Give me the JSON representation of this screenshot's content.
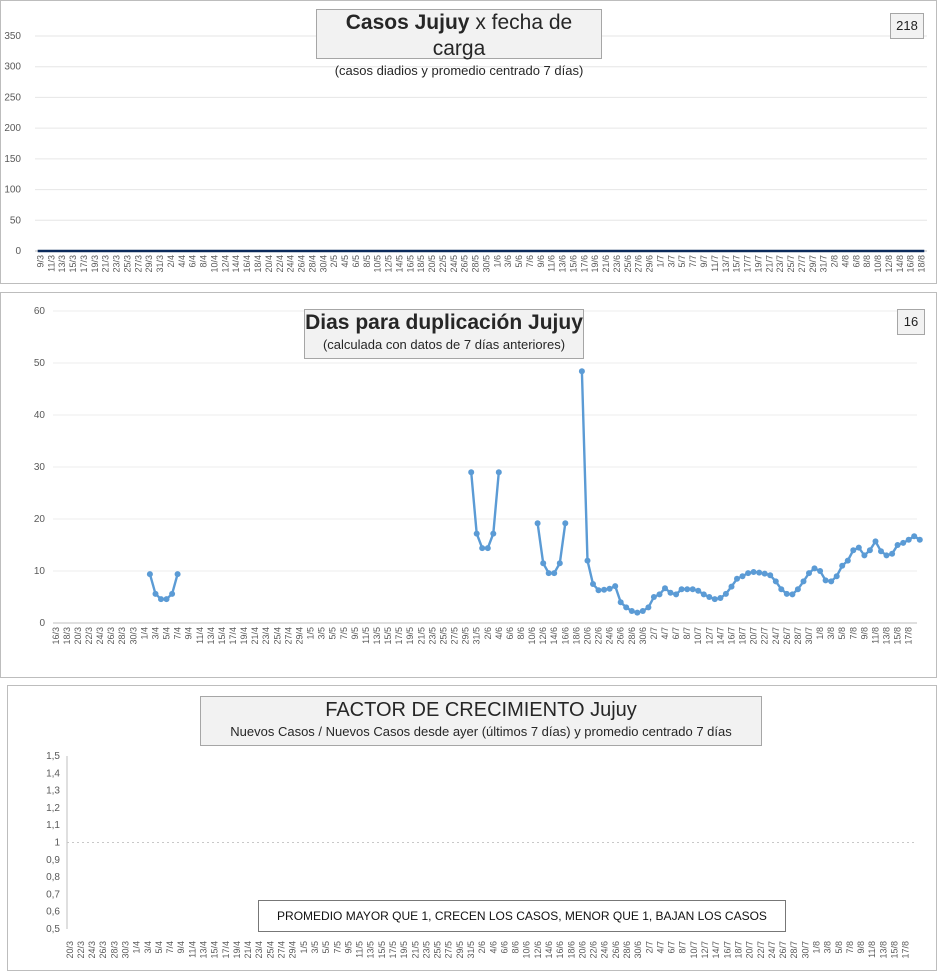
{
  "chart_data": [
    {
      "type": "bar",
      "title": "Casos Jujuy",
      "title_rest": "x fecha de carga",
      "subtitle": "(casos diadios y promedio  centrado 7 días)",
      "badge": "218",
      "ylim": [
        0,
        350
      ],
      "yticks": [
        0,
        50,
        100,
        150,
        200,
        250,
        300,
        350
      ],
      "xlabels": [
        "9/3",
        "11/3",
        "13/3",
        "15/3",
        "17/3",
        "19/3",
        "21/3",
        "23/3",
        "25/3",
        "27/3",
        "29/3",
        "31/3",
        "2/4",
        "4/4",
        "6/4",
        "8/4",
        "10/4",
        "12/4",
        "14/4",
        "16/4",
        "18/4",
        "20/4",
        "22/4",
        "24/4",
        "26/4",
        "28/4",
        "30/4",
        "2/5",
        "4/5",
        "6/5",
        "8/5",
        "10/5",
        "12/5",
        "14/5",
        "16/5",
        "18/5",
        "20/5",
        "22/5",
        "24/5",
        "26/5",
        "28/5",
        "30/5",
        "1/6",
        "3/6",
        "5/6",
        "7/6",
        "9/6",
        "11/6",
        "13/6",
        "15/6",
        "17/6",
        "19/6",
        "21/6",
        "23/6",
        "25/6",
        "27/6",
        "29/6",
        "1/7",
        "3/7",
        "5/7",
        "7/7",
        "9/7",
        "11/7",
        "13/7",
        "15/7",
        "17/7",
        "19/7",
        "21/7",
        "23/7",
        "25/7",
        "27/7",
        "29/7",
        "31/7",
        "2/8",
        "4/8",
        "6/8",
        "8/8",
        "10/8",
        "12/8",
        "14/8",
        "16/8",
        "18/8"
      ],
      "series": [
        {
          "name": "Casos diarios",
          "kind": "bar",
          "color": "#5b9bd5",
          "values": [
            0,
            0,
            0,
            0,
            0,
            0,
            0,
            0,
            0,
            0,
            0,
            0,
            0,
            0,
            0,
            0,
            0,
            0,
            0,
            0,
            0,
            0,
            0,
            0,
            0,
            0,
            0,
            0,
            0,
            0,
            0,
            0,
            0,
            0,
            0,
            0,
            0,
            0,
            0,
            0,
            0,
            0,
            0,
            0,
            0,
            0,
            0,
            0,
            0,
            0,
            0,
            0,
            0,
            0,
            0,
            0,
            0,
            0,
            0,
            0,
            0,
            0,
            0,
            0,
            0,
            0,
            0,
            0,
            0,
            0,
            0,
            0,
            0,
            0,
            0,
            0,
            0,
            0,
            0,
            0,
            0,
            0,
            0,
            0,
            0,
            0,
            0,
            0,
            0,
            0,
            0,
            0,
            0,
            0,
            0,
            0,
            0,
            0,
            0,
            0,
            0,
            0,
            0,
            0,
            0,
            0,
            0,
            0,
            0,
            0,
            0,
            0,
            0,
            0,
            0,
            0,
            0,
            0,
            0,
            0,
            0,
            0,
            0,
            0,
            0,
            0,
            0,
            0,
            0,
            0,
            0,
            0,
            0,
            0,
            0,
            0,
            0,
            0,
            0,
            0,
            0,
            0,
            0,
            0,
            0,
            0,
            0,
            0,
            0,
            0,
            0,
            0,
            0,
            0,
            0,
            0,
            0,
            0,
            0,
            0,
            0,
            0,
            0,
            0,
            0,
            0,
            0,
            0
          ]
        },
        {
          "name": "Promedio centrado 7 días",
          "kind": "line",
          "color": "#0b2a5b",
          "values": [
            0,
            0,
            0,
            0,
            0,
            0,
            0,
            0,
            0,
            0,
            0,
            0,
            0,
            0,
            0,
            0,
            0,
            0,
            0,
            0,
            0,
            0,
            0,
            0,
            0,
            0,
            0,
            0,
            0,
            0,
            0,
            0,
            0,
            0,
            0,
            0,
            0,
            0,
            0,
            0,
            0,
            0,
            0,
            0,
            0,
            0,
            0,
            0,
            0,
            0,
            0,
            0,
            0,
            0,
            0,
            0,
            0,
            0,
            0,
            0,
            0,
            0,
            0,
            0,
            0,
            0,
            0,
            0,
            0,
            0,
            0,
            0,
            0,
            0,
            0,
            0,
            0,
            0,
            0,
            0,
            0,
            0,
            0,
            0,
            0,
            0,
            0,
            0,
            0,
            0,
            0,
            0,
            0,
            0,
            0,
            0,
            0,
            0,
            0,
            0,
            0,
            0,
            0,
            0,
            0,
            0,
            0,
            0,
            0,
            0,
            0,
            0,
            0,
            0,
            0,
            0,
            0,
            0,
            0,
            0,
            0,
            0,
            0,
            0,
            0,
            0,
            0,
            0,
            0,
            0,
            0,
            0,
            0,
            0,
            0,
            0,
            0,
            0,
            0,
            0,
            0,
            0,
            0,
            0,
            0,
            0,
            0,
            0,
            0,
            0,
            0,
            0,
            0,
            0,
            0,
            0,
            0,
            0,
            0,
            0,
            0,
            0,
            0,
            0,
            0,
            0,
            0,
            0
          ]
        }
      ]
    },
    {
      "type": "line",
      "title": "Dias para duplicación Jujuy",
      "subtitle": "(calculada con datos de 7 días anteriores)",
      "badge": "16",
      "ylim": [
        0,
        60
      ],
      "yticks": [
        0,
        10,
        20,
        30,
        40,
        50,
        60
      ],
      "xlabels": [
        "16/3",
        "18/3",
        "20/3",
        "22/3",
        "24/3",
        "26/3",
        "28/3",
        "30/3",
        "1/4",
        "3/4",
        "5/4",
        "7/4",
        "9/4",
        "11/4",
        "13/4",
        "15/4",
        "17/4",
        "19/4",
        "21/4",
        "23/4",
        "25/4",
        "27/4",
        "29/4",
        "1/5",
        "3/5",
        "5/5",
        "7/5",
        "9/5",
        "11/5",
        "13/5",
        "15/5",
        "17/5",
        "19/5",
        "21/5",
        "23/5",
        "25/5",
        "27/5",
        "29/5",
        "31/5",
        "2/6",
        "4/6",
        "6/6",
        "8/6",
        "10/6",
        "12/6",
        "14/6",
        "16/6",
        "18/6",
        "20/6",
        "22/6",
        "24/6",
        "26/6",
        "28/6",
        "30/6",
        "2/7",
        "4/7",
        "6/7",
        "8/7",
        "10/7",
        "12/7",
        "14/7",
        "16/7",
        "18/7",
        "20/7",
        "22/7",
        "24/7",
        "26/7",
        "28/7",
        "30/7",
        "1/8",
        "3/8",
        "5/8",
        "7/8",
        "9/8",
        "11/8",
        "13/8",
        "15/8",
        "17/8"
      ],
      "series": [
        {
          "name": "Días para duplicación",
          "color": "#5b9bd5",
          "segments": [
            {
              "start": 17,
              "values": [
                9.4,
                5.6,
                4.6,
                4.6,
                5.6,
                9.4
              ]
            },
            {
              "start": 75,
              "values": [
                29,
                17.2,
                14.4,
                14.4,
                17.2,
                29
              ]
            },
            {
              "start": 87,
              "values": [
                19.2,
                11.5,
                9.6,
                9.6,
                11.5,
                19.2
              ]
            },
            {
              "start": 95,
              "values": [
                48.4,
                12,
                7.5,
                6.3,
                6.4,
                6.6,
                7.1,
                4,
                3,
                2.3,
                2,
                2.3,
                3,
                5,
                5.5,
                6.7,
                5.8,
                5.5,
                6.5,
                6.5,
                6.5,
                6.2,
                5.5,
                5,
                4.6,
                4.8,
                5.6,
                7,
                8.5,
                9,
                9.6,
                9.8,
                9.7,
                9.5,
                9.2,
                8,
                6.5,
                5.6,
                5.5,
                6.5,
                8,
                9.6,
                10.5,
                10,
                8.2,
                8,
                9,
                11,
                12,
                14,
                14.5,
                13,
                14,
                15.7,
                13.8,
                13,
                13.3,
                15,
                15.4,
                16,
                16.7,
                16
              ]
            }
          ]
        }
      ]
    },
    {
      "type": "bar",
      "title": "FACTOR DE CRECIMIENTO",
      "title_rest": "Jujuy",
      "subtitle": "Nuevos Casos  / Nuevos Casos desde ayer (últimos 7 días) y promedio  centrado 7 días",
      "note": "PROMEDIO MAYOR QUE 1, CRECEN LOS CASOS, MENOR QUE 1, BAJAN LOS CASOS",
      "ylim": [
        0.5,
        1.5
      ],
      "baseline": 1,
      "yticks": [
        "0,5",
        "0,6",
        "0,7",
        "0,8",
        "0,9",
        "1",
        "1,1",
        "1,2",
        "1,3",
        "1,4",
        "1,5"
      ],
      "xlabels": [
        "20/3",
        "22/3",
        "24/3",
        "26/3",
        "28/3",
        "30/3",
        "1/4",
        "3/4",
        "5/4",
        "7/4",
        "9/4",
        "11/4",
        "13/4",
        "15/4",
        "17/4",
        "19/4",
        "21/4",
        "23/4",
        "25/4",
        "27/4",
        "29/4",
        "1/5",
        "3/5",
        "5/5",
        "7/5",
        "9/5",
        "11/5",
        "13/5",
        "15/5",
        "17/5",
        "19/5",
        "21/5",
        "23/5",
        "25/5",
        "27/5",
        "29/5",
        "31/5",
        "2/6",
        "4/6",
        "6/6",
        "8/6",
        "10/6",
        "12/6",
        "14/6",
        "16/6",
        "18/6",
        "20/6",
        "22/6",
        "24/6",
        "26/6",
        "28/6",
        "30/6",
        "2/7",
        "4/7",
        "6/7",
        "8/7",
        "10/7",
        "12/7",
        "14/7",
        "16/7",
        "18/7",
        "20/7",
        "22/7",
        "24/7",
        "26/7",
        "28/7",
        "30/7",
        "1/8",
        "3/8",
        "5/8",
        "7/8",
        "9/8",
        "11/8",
        "13/8",
        "15/8",
        "17/8"
      ],
      "series": [
        {
          "name": "Factor de crecimiento",
          "kind": "bar",
          "color": "#2e5f9e"
        },
        {
          "name": "Promedio centrado 7 días",
          "kind": "line",
          "color": "#0b2a5b"
        }
      ]
    }
  ]
}
